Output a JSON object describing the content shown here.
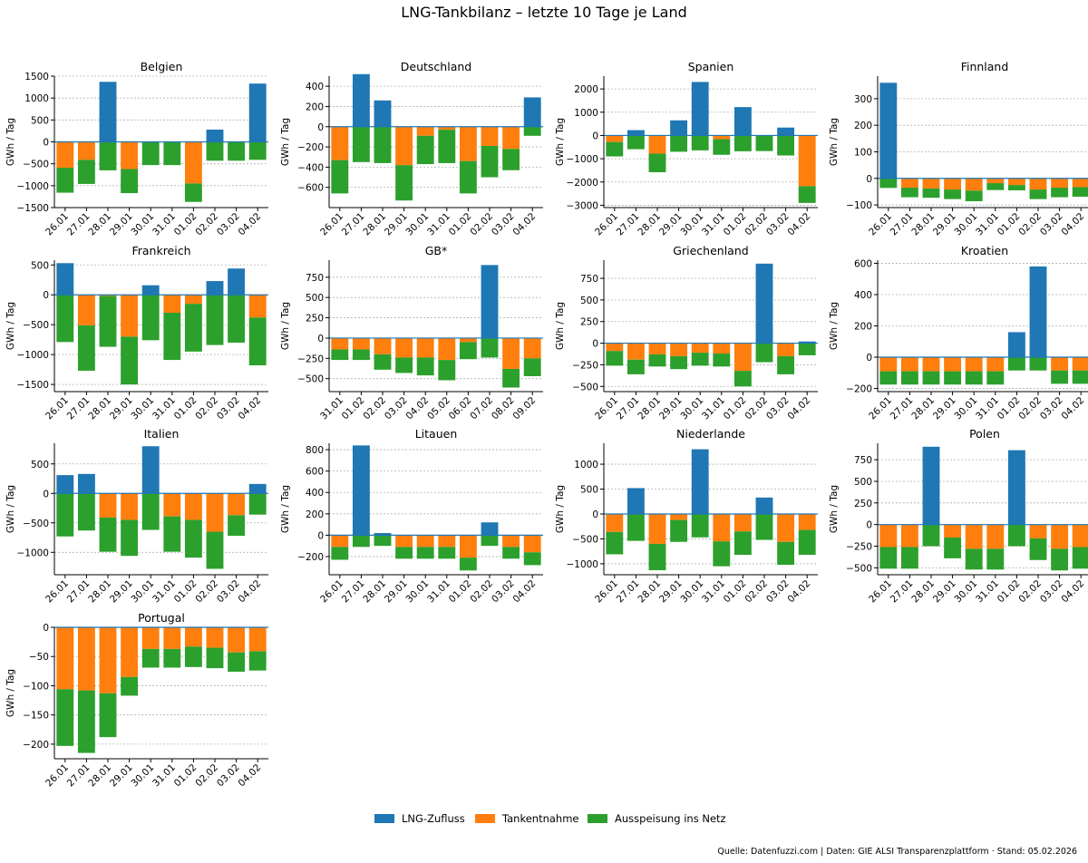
{
  "figure": {
    "title": "LNG-Tankbilanz – letzte 10 Tage je Land",
    "source": "Quelle: Datenfuzzi.com | Daten: GIE ALSI Transparenzplattform · Stand: 05.02.2026"
  },
  "legend": [
    {
      "label": "LNG-Zufluss",
      "color": "#1f77b4"
    },
    {
      "label": "Tankentnahme",
      "color": "#ff7f0e"
    },
    {
      "label": "Ausspeisung ins Netz",
      "color": "#2ca02c"
    }
  ],
  "colors": {
    "inflow": "#1f77b4",
    "withdrawal": "#ff7f0e",
    "sendout": "#2ca02c",
    "zero_line": "#1f77b4",
    "grid": "#b0b0b0"
  },
  "chart_data": [
    {
      "type": "bar",
      "title": "Belgien",
      "ylabel": "GWh / Tag",
      "ylim": [
        -1500,
        1500
      ],
      "yticks": [
        -1500,
        -1000,
        -500,
        0,
        500,
        1000,
        1500
      ],
      "categories": [
        "26.01",
        "27.01",
        "28.01",
        "29.01",
        "30.01",
        "31.01",
        "01.02",
        "02.02",
        "03.02",
        "04.02"
      ],
      "series": [
        {
          "name": "LNG-Zufluss",
          "values": [
            0,
            0,
            1370,
            0,
            0,
            0,
            0,
            280,
            0,
            1330
          ]
        },
        {
          "name": "Tankentnahme",
          "values": [
            -590,
            -410,
            0,
            -620,
            0,
            0,
            -950,
            0,
            0,
            0
          ]
        },
        {
          "name": "Ausspeisung ins Netz",
          "values": [
            -570,
            -550,
            -650,
            -550,
            -530,
            -530,
            -420,
            -430,
            -430,
            -410
          ]
        }
      ]
    },
    {
      "type": "bar",
      "title": "Deutschland",
      "ylabel": "GWh / Tag",
      "ylim": [
        -800,
        500
      ],
      "yticks": [
        -600,
        -400,
        -200,
        0,
        200,
        400
      ],
      "categories": [
        "26.01",
        "27.01",
        "28.01",
        "29.01",
        "30.01",
        "31.01",
        "01.02",
        "02.02",
        "03.02",
        "04.02"
      ],
      "series": [
        {
          "name": "LNG-Zufluss",
          "values": [
            0,
            520,
            260,
            0,
            0,
            0,
            0,
            0,
            0,
            290
          ]
        },
        {
          "name": "Tankentnahme",
          "values": [
            -330,
            0,
            0,
            -380,
            -90,
            -30,
            -340,
            -190,
            -220,
            0
          ]
        },
        {
          "name": "Ausspeisung ins Netz",
          "values": [
            -330,
            -350,
            -360,
            -350,
            -280,
            -330,
            -320,
            -310,
            -210,
            -90
          ]
        }
      ]
    },
    {
      "type": "bar",
      "title": "Spanien",
      "ylabel": "GWh / Tag",
      "ylim": [
        -3100,
        2550
      ],
      "yticks": [
        -3000,
        -2000,
        -1000,
        0,
        1000,
        2000
      ],
      "categories": [
        "26.01",
        "27.01",
        "28.01",
        "29.01",
        "30.01",
        "31.01",
        "01.02",
        "02.02",
        "03.02",
        "04.02"
      ],
      "series": [
        {
          "name": "LNG-Zufluss",
          "values": [
            0,
            230,
            0,
            650,
            2300,
            0,
            1220,
            0,
            340,
            0
          ]
        },
        {
          "name": "Tankentnahme",
          "values": [
            -280,
            0,
            -780,
            0,
            0,
            -160,
            0,
            0,
            0,
            -2180
          ]
        },
        {
          "name": "Ausspeisung ins Netz",
          "values": [
            -620,
            -590,
            -800,
            -700,
            -640,
            -670,
            -680,
            -670,
            -860,
            -720
          ]
        }
      ]
    },
    {
      "type": "bar",
      "title": "Finnland",
      "ylabel": "GWh / Tag",
      "ylim": [
        -110,
        385
      ],
      "yticks": [
        -100,
        0,
        100,
        200,
        300
      ],
      "categories": [
        "26.01",
        "27.01",
        "28.01",
        "29.01",
        "30.01",
        "31.01",
        "01.02",
        "02.02",
        "03.02",
        "04.02"
      ],
      "series": [
        {
          "name": "LNG-Zufluss",
          "values": [
            360,
            0,
            0,
            0,
            0,
            0,
            0,
            0,
            0,
            0
          ]
        },
        {
          "name": "Tankentnahme",
          "values": [
            0,
            -35,
            -38,
            -42,
            -46,
            -18,
            -25,
            -42,
            -35,
            -33
          ]
        },
        {
          "name": "Ausspeisung ins Netz",
          "values": [
            -36,
            -36,
            -35,
            -36,
            -40,
            -26,
            -20,
            -36,
            -36,
            -36
          ]
        }
      ]
    },
    {
      "type": "bar",
      "title": "Frankreich",
      "ylabel": "GWh / Tag",
      "ylim": [
        -1620,
        580
      ],
      "yticks": [
        -1500,
        -1000,
        -500,
        0,
        500
      ],
      "categories": [
        "26.01",
        "27.01",
        "28.01",
        "29.01",
        "30.01",
        "31.01",
        "01.02",
        "02.02",
        "03.02",
        "04.02"
      ],
      "series": [
        {
          "name": "LNG-Zufluss",
          "values": [
            530,
            0,
            0,
            0,
            160,
            0,
            0,
            230,
            440,
            0
          ]
        },
        {
          "name": "Tankentnahme",
          "values": [
            0,
            -510,
            -20,
            -700,
            0,
            -300,
            -150,
            0,
            0,
            -380
          ]
        },
        {
          "name": "Ausspeisung ins Netz",
          "values": [
            -790,
            -760,
            -850,
            -800,
            -760,
            -790,
            -800,
            -840,
            -800,
            -800
          ]
        }
      ]
    },
    {
      "type": "bar",
      "title": "GB*",
      "ylabel": "GWh / Tag",
      "ylim": [
        -660,
        960
      ],
      "yticks": [
        -500,
        -250,
        0,
        250,
        500,
        750
      ],
      "categories": [
        "31.01",
        "01.02",
        "02.02",
        "03.02",
        "04.02",
        "05.02",
        "06.02",
        "07.02",
        "08.02",
        "09.02"
      ],
      "series": [
        {
          "name": "LNG-Zufluss",
          "values": [
            0,
            0,
            0,
            0,
            0,
            0,
            0,
            900,
            0,
            0
          ]
        },
        {
          "name": "Tankentnahme",
          "values": [
            -140,
            -140,
            -200,
            -240,
            -240,
            -270,
            -50,
            0,
            -380,
            -250
          ]
        },
        {
          "name": "Ausspeisung ins Netz",
          "values": [
            -130,
            -130,
            -190,
            -190,
            -220,
            -250,
            -210,
            -240,
            -230,
            -220
          ]
        }
      ]
    },
    {
      "type": "bar",
      "title": "Griechenland",
      "ylabel": "GWh / Tag",
      "ylim": [
        -560,
        960
      ],
      "yticks": [
        -500,
        -250,
        0,
        250,
        500,
        750
      ],
      "categories": [
        "26.01",
        "27.01",
        "28.01",
        "29.01",
        "30.01",
        "31.01",
        "01.02",
        "02.02",
        "03.02",
        "04.02"
      ],
      "series": [
        {
          "name": "LNG-Zufluss",
          "values": [
            0,
            0,
            0,
            0,
            0,
            0,
            0,
            920,
            0,
            20
          ]
        },
        {
          "name": "Tankentnahme",
          "values": [
            -90,
            -190,
            -130,
            -150,
            -110,
            -120,
            -320,
            0,
            -150,
            0
          ]
        },
        {
          "name": "Ausspeisung ins Netz",
          "values": [
            -170,
            -170,
            -140,
            -150,
            -150,
            -150,
            -180,
            -220,
            -210,
            -140
          ]
        }
      ]
    },
    {
      "type": "bar",
      "title": "Kroatien",
      "ylabel": "GWh / Tag",
      "ylim": [
        -220,
        620
      ],
      "yticks": [
        -200,
        0,
        200,
        400,
        600
      ],
      "categories": [
        "26.01",
        "27.01",
        "28.01",
        "29.01",
        "30.01",
        "31.01",
        "01.02",
        "02.02",
        "03.02",
        "04.02"
      ],
      "series": [
        {
          "name": "LNG-Zufluss",
          "values": [
            0,
            0,
            0,
            0,
            0,
            0,
            160,
            580,
            0,
            0
          ]
        },
        {
          "name": "Tankentnahme",
          "values": [
            -90,
            -90,
            -90,
            -90,
            -90,
            -90,
            0,
            0,
            -85,
            -85
          ]
        },
        {
          "name": "Ausspeisung ins Netz",
          "values": [
            -85,
            -85,
            -85,
            -85,
            -85,
            -85,
            -85,
            -85,
            -85,
            -85
          ]
        }
      ]
    },
    {
      "type": "bar",
      "title": "Italien",
      "ylabel": "GWh / Tag",
      "ylim": [
        -1380,
        850
      ],
      "yticks": [
        -1000,
        -500,
        0,
        500
      ],
      "categories": [
        "26.01",
        "27.01",
        "28.01",
        "29.01",
        "30.01",
        "31.01",
        "01.02",
        "02.02",
        "03.02",
        "04.02"
      ],
      "series": [
        {
          "name": "LNG-Zufluss",
          "values": [
            310,
            330,
            0,
            0,
            800,
            0,
            0,
            0,
            0,
            160
          ]
        },
        {
          "name": "Tankentnahme",
          "values": [
            0,
            0,
            -410,
            -450,
            0,
            -390,
            -450,
            -650,
            -370,
            0
          ]
        },
        {
          "name": "Ausspeisung ins Netz",
          "values": [
            -730,
            -630,
            -580,
            -610,
            -620,
            -600,
            -640,
            -630,
            -350,
            -360
          ]
        }
      ]
    },
    {
      "type": "bar",
      "title": "Litauen",
      "ylabel": "GWh / Tag",
      "ylim": [
        -370,
        860
      ],
      "yticks": [
        -200,
        0,
        200,
        400,
        600,
        800
      ],
      "categories": [
        "26.01",
        "27.01",
        "28.01",
        "29.01",
        "30.01",
        "31.01",
        "01.02",
        "02.02",
        "03.02",
        "04.02"
      ],
      "series": [
        {
          "name": "LNG-Zufluss",
          "values": [
            0,
            840,
            20,
            0,
            0,
            0,
            0,
            120,
            0,
            0
          ]
        },
        {
          "name": "Tankentnahme",
          "values": [
            -110,
            0,
            0,
            -110,
            -110,
            -110,
            -210,
            0,
            -110,
            -160
          ]
        },
        {
          "name": "Ausspeisung ins Netz",
          "values": [
            -120,
            -110,
            -100,
            -110,
            -110,
            -110,
            -120,
            -100,
            -110,
            -120
          ]
        }
      ]
    },
    {
      "type": "bar",
      "title": "Niederlande",
      "ylabel": "GWh / Tag",
      "ylim": [
        -1220,
        1420
      ],
      "yticks": [
        -1000,
        -500,
        0,
        500,
        1000
      ],
      "categories": [
        "26.01",
        "27.01",
        "28.01",
        "29.01",
        "30.01",
        "31.01",
        "01.02",
        "02.02",
        "03.02",
        "04.02"
      ],
      "series": [
        {
          "name": "LNG-Zufluss",
          "values": [
            0,
            520,
            0,
            0,
            1300,
            0,
            0,
            330,
            0,
            0
          ]
        },
        {
          "name": "Tankentnahme",
          "values": [
            -360,
            0,
            -600,
            -120,
            0,
            -550,
            -350,
            0,
            -560,
            -320
          ]
        },
        {
          "name": "Ausspeisung ins Netz",
          "values": [
            -450,
            -540,
            -530,
            -440,
            -470,
            -500,
            -470,
            -520,
            -460,
            -500
          ]
        }
      ]
    },
    {
      "type": "bar",
      "title": "Polen",
      "ylabel": "GWh / Tag",
      "ylim": [
        -580,
        940
      ],
      "yticks": [
        -500,
        -250,
        0,
        250,
        500,
        750
      ],
      "categories": [
        "26.01",
        "27.01",
        "28.01",
        "29.01",
        "30.01",
        "31.01",
        "01.02",
        "02.02",
        "03.02",
        "04.02"
      ],
      "series": [
        {
          "name": "LNG-Zufluss",
          "values": [
            0,
            0,
            900,
            0,
            0,
            0,
            860,
            0,
            0,
            0
          ]
        },
        {
          "name": "Tankentnahme",
          "values": [
            -260,
            -260,
            0,
            -150,
            -280,
            -280,
            0,
            -160,
            -280,
            -260
          ]
        },
        {
          "name": "Ausspeisung ins Netz",
          "values": [
            -250,
            -250,
            -250,
            -240,
            -240,
            -240,
            -250,
            -250,
            -250,
            -250
          ]
        }
      ]
    },
    {
      "type": "bar",
      "title": "Portugal",
      "ylabel": "GWh / Tag",
      "ylim": [
        -225,
        0
      ],
      "yticks": [
        -200,
        -150,
        -100,
        -50,
        0
      ],
      "categories": [
        "26.01",
        "27.01",
        "28.01",
        "29.01",
        "30.01",
        "31.01",
        "01.02",
        "02.02",
        "03.02",
        "04.02"
      ],
      "series": [
        {
          "name": "LNG-Zufluss",
          "values": [
            0,
            0,
            0,
            0,
            0,
            0,
            0,
            0,
            0,
            0
          ]
        },
        {
          "name": "Tankentnahme",
          "values": [
            -106,
            -108,
            -113,
            -85,
            -37,
            -37,
            -33,
            -35,
            -43,
            -41
          ]
        },
        {
          "name": "Ausspeisung ins Netz",
          "values": [
            -97,
            -107,
            -75,
            -32,
            -32,
            -32,
            -35,
            -35,
            -33,
            -33
          ]
        }
      ]
    }
  ]
}
